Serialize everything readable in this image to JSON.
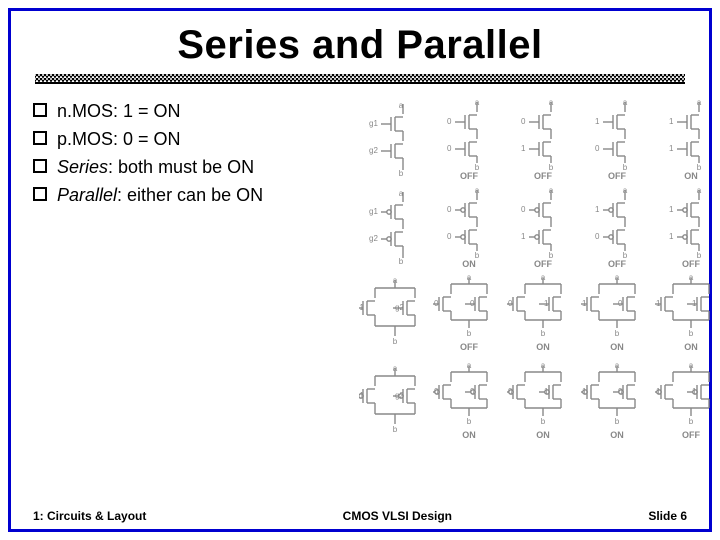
{
  "title": "Series and Parallel",
  "bullets": {
    "items": [
      {
        "pre": "n.MOS: ",
        "post": "1 = ON",
        "italicPre": false
      },
      {
        "pre": "p.MOS: ",
        "post": "0 = ON",
        "italicPre": false
      },
      {
        "pre": "Series",
        "post": ": both must be ON",
        "italicPre": true
      },
      {
        "pre": "Parallel",
        "post": ": either can be ON",
        "italicPre": true
      }
    ]
  },
  "rows": [
    {
      "type": "series-n",
      "inputs": [
        "g1",
        "g2"
      ],
      "cases": [
        {
          "g1": "0",
          "g2": "0",
          "out": "OFF"
        },
        {
          "g1": "0",
          "g2": "1",
          "out": "OFF"
        },
        {
          "g1": "1",
          "g2": "0",
          "out": "OFF"
        },
        {
          "g1": "1",
          "g2": "1",
          "out": "ON"
        }
      ]
    },
    {
      "type": "series-p",
      "inputs": [
        "g1",
        "g2"
      ],
      "cases": [
        {
          "g1": "0",
          "g2": "0",
          "out": "ON"
        },
        {
          "g1": "0",
          "g2": "1",
          "out": "OFF"
        },
        {
          "g1": "1",
          "g2": "0",
          "out": "OFF"
        },
        {
          "g1": "1",
          "g2": "1",
          "out": "OFF"
        }
      ]
    },
    {
      "type": "parallel-n",
      "inputs": [
        "g1",
        "g2"
      ],
      "cases": [
        {
          "g1": "0",
          "g2": "0",
          "out": "OFF"
        },
        {
          "g1": "0",
          "g2": "1",
          "out": "ON"
        },
        {
          "g1": "1",
          "g2": "0",
          "out": "ON"
        },
        {
          "g1": "1",
          "g2": "1",
          "out": "ON"
        }
      ]
    },
    {
      "type": "parallel-p",
      "inputs": [
        "g1",
        "g2"
      ],
      "cases": [
        {
          "g1": "0",
          "g2": "0",
          "out": "ON"
        },
        {
          "g1": "0",
          "g2": "1",
          "out": "ON"
        },
        {
          "g1": "1",
          "g2": "0",
          "out": "ON"
        },
        {
          "g1": "1",
          "g2": "1",
          "out": "OFF"
        }
      ]
    }
  ],
  "footer": {
    "left": "1: Circuits & Layout",
    "center": "CMOS VLSI Design",
    "right": "Slide 6"
  },
  "style": {
    "slide_w": 720,
    "slide_h": 540,
    "border_color": "#0000d0",
    "title_fontsize": 40,
    "bullet_fontsize": 18,
    "diagram_color": "#888888"
  }
}
